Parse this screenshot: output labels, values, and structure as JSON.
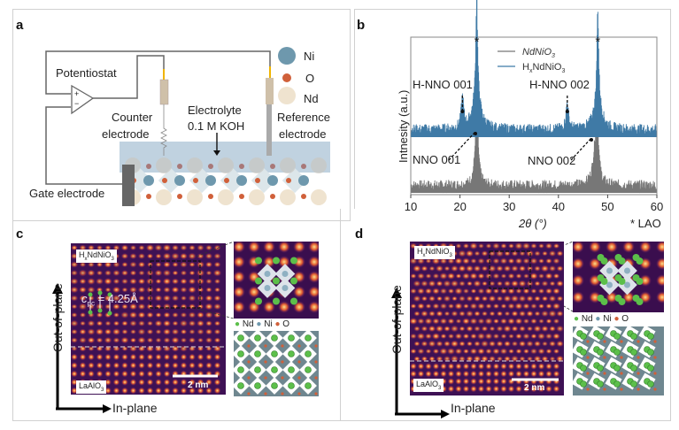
{
  "panels": {
    "a": {
      "label": "a",
      "potentiostat": "Potentiostat",
      "plus": "+",
      "minus": "−",
      "counter_electrode": [
        "Counter",
        "electrode"
      ],
      "reference_electrode": [
        "Reference",
        "electrode"
      ],
      "electrolyte": [
        "Electrolyte",
        "0.1 M KOH"
      ],
      "gate_electrode": "Gate electrode",
      "legend": [
        {
          "label": "Ni",
          "color": "#6e98ad"
        },
        {
          "label": "O",
          "color": "#d0603a"
        },
        {
          "label": "Nd",
          "color": "#efe3cf"
        }
      ]
    },
    "b": {
      "label": "b"
    },
    "c": {
      "label": "c",
      "film_tag": "HxNdNiO3",
      "substrate_tag": "LaAlO3",
      "lattice": "c",
      "lattice_sub": "pc",
      "lattice_value": " = 4.25Å",
      "scale_bar": "2 nm",
      "legend": [
        "Nd",
        "Ni",
        "O"
      ],
      "axis_out": "Out-of-plane",
      "axis_in": "In-plane"
    },
    "d": {
      "label": "d",
      "film_tag": "HxNdNiO3",
      "substrate_tag": "LaAlO3",
      "scale_bar": "2 nm",
      "legend": [
        "Nd",
        "Ni",
        "O"
      ],
      "axis_out": "Out-of-plane",
      "axis_in": "In-plane"
    }
  },
  "colors": {
    "ni": "#6e98ad",
    "o": "#d0603a",
    "nd": "#efe3cf",
    "nd_green": "#5cbf4a",
    "hx": "#3f7aa6",
    "nno": "#777777"
  },
  "chart_data": {
    "type": "line",
    "xlabel": "2θ (°)",
    "ylabel": "Intnesity (a.u.)",
    "xlim": [
      10,
      60
    ],
    "xticks": [
      "10",
      "20",
      "30",
      "40",
      "50",
      "60"
    ],
    "substrate_note": "* LAO",
    "substrate_marks": [
      {
        "x": 23.4,
        "label": "*"
      },
      {
        "x": 48.0,
        "label": "*"
      }
    ],
    "series": [
      {
        "name": "NdNiO3",
        "color": "#777777",
        "offset": 0,
        "peaks": [
          {
            "x": 23.4,
            "h": 1.0,
            "w": 0.35
          },
          {
            "x": 47.6,
            "h": 0.55,
            "w": 0.6
          },
          {
            "x": 48.0,
            "h": 0.45,
            "w": 0.2
          }
        ]
      },
      {
        "name": "HxNdNiO3",
        "color": "#3f7aa6",
        "offset": 1,
        "peaks": [
          {
            "x": 20.5,
            "h": 0.3,
            "w": 0.3
          },
          {
            "x": 23.4,
            "h": 1.0,
            "w": 0.2
          },
          {
            "x": 23.4,
            "h": 0.35,
            "w": 0.9
          },
          {
            "x": 41.8,
            "h": 0.27,
            "w": 0.3
          },
          {
            "x": 48.0,
            "h": 0.9,
            "w": 0.2
          },
          {
            "x": 48.0,
            "h": 0.3,
            "w": 0.9
          }
        ]
      }
    ],
    "annotations": [
      {
        "text": "H-NNO 001",
        "x": 20.5
      },
      {
        "text": "H-NNO 002",
        "x": 41.8
      },
      {
        "text": "NNO 001",
        "x": 23.3
      },
      {
        "text": "NNO 002",
        "x": 47.5
      }
    ],
    "legend": [
      "NdNiO3",
      "HxNdNiO3"
    ],
    "legend_position": "top-center"
  }
}
